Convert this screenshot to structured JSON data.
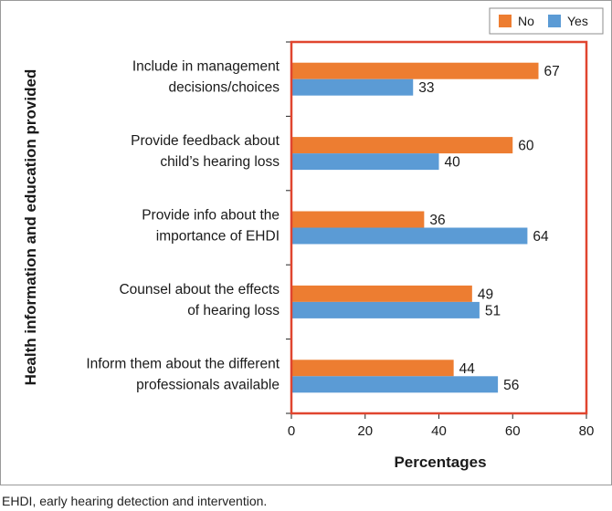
{
  "chart_data": {
    "type": "bar",
    "orientation": "horizontal",
    "categories": [
      [
        "Include in management",
        "decisions/choices"
      ],
      [
        "Provide feedback about",
        "child’s hearing loss"
      ],
      [
        "Provide info about the",
        "importance of EHDI"
      ],
      [
        "Counsel about the effects",
        "of hearing loss"
      ],
      [
        "Inform them about the different",
        "professionals available"
      ]
    ],
    "series": [
      {
        "name": "No",
        "color": "#ed7d31",
        "values": [
          67,
          60,
          36,
          49,
          44
        ]
      },
      {
        "name": "Yes",
        "color": "#5b9bd5",
        "values": [
          33,
          40,
          64,
          51,
          56
        ]
      }
    ],
    "xlabel": "Percentages",
    "ylabel": "Health information and education provided",
    "xlim": [
      0,
      80
    ],
    "xticks": [
      0,
      20,
      40,
      60,
      80
    ],
    "grid": false,
    "legend_position": "top-right",
    "plot_border_color": "#e0452f",
    "data_labels": true
  },
  "caption": "EHDI, early hearing detection and intervention."
}
